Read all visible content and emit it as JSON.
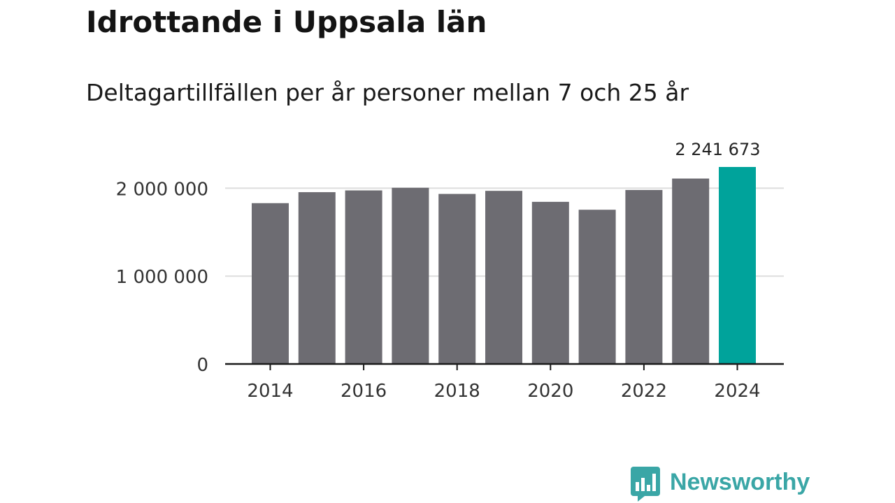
{
  "header": {
    "title": "Idrottande i Uppsala län",
    "subtitle": "Deltagartillfällen per år personer mellan 7 och 25 år"
  },
  "chart_data": {
    "type": "bar",
    "title": "Idrottande i Uppsala län",
    "subtitle": "Deltagartillfällen per år personer mellan 7 och 25 år",
    "xlabel": "",
    "ylabel": "",
    "categories": [
      "2014",
      "2015",
      "2016",
      "2017",
      "2018",
      "2019",
      "2020",
      "2021",
      "2022",
      "2023",
      "2024"
    ],
    "values": [
      1830000,
      1955000,
      1975000,
      2005000,
      1935000,
      1970000,
      1845000,
      1755000,
      1980000,
      2110000,
      2241673
    ],
    "ylim": [
      0,
      2241673
    ],
    "yticks": [
      0,
      1000000,
      2000000
    ],
    "ytick_labels": [
      "0",
      "1 000 000",
      "2 000 000"
    ],
    "xtick_labels": [
      "2014",
      "2016",
      "2018",
      "2020",
      "2022",
      "2024"
    ],
    "annotations": [
      {
        "category": "2024",
        "text": "2 241 673"
      }
    ],
    "grid": true,
    "legend": "none",
    "colors": {
      "bar": "#6d6c72",
      "highlight": "#00a39b",
      "grid": "#dddddd",
      "axis": "#1a1a1a",
      "text": "#333333"
    }
  },
  "branding": {
    "logo_text": "Newsworthy",
    "logo_color": "#3aa6a6",
    "icon": "newsworthy-chart-bubble-icon"
  }
}
